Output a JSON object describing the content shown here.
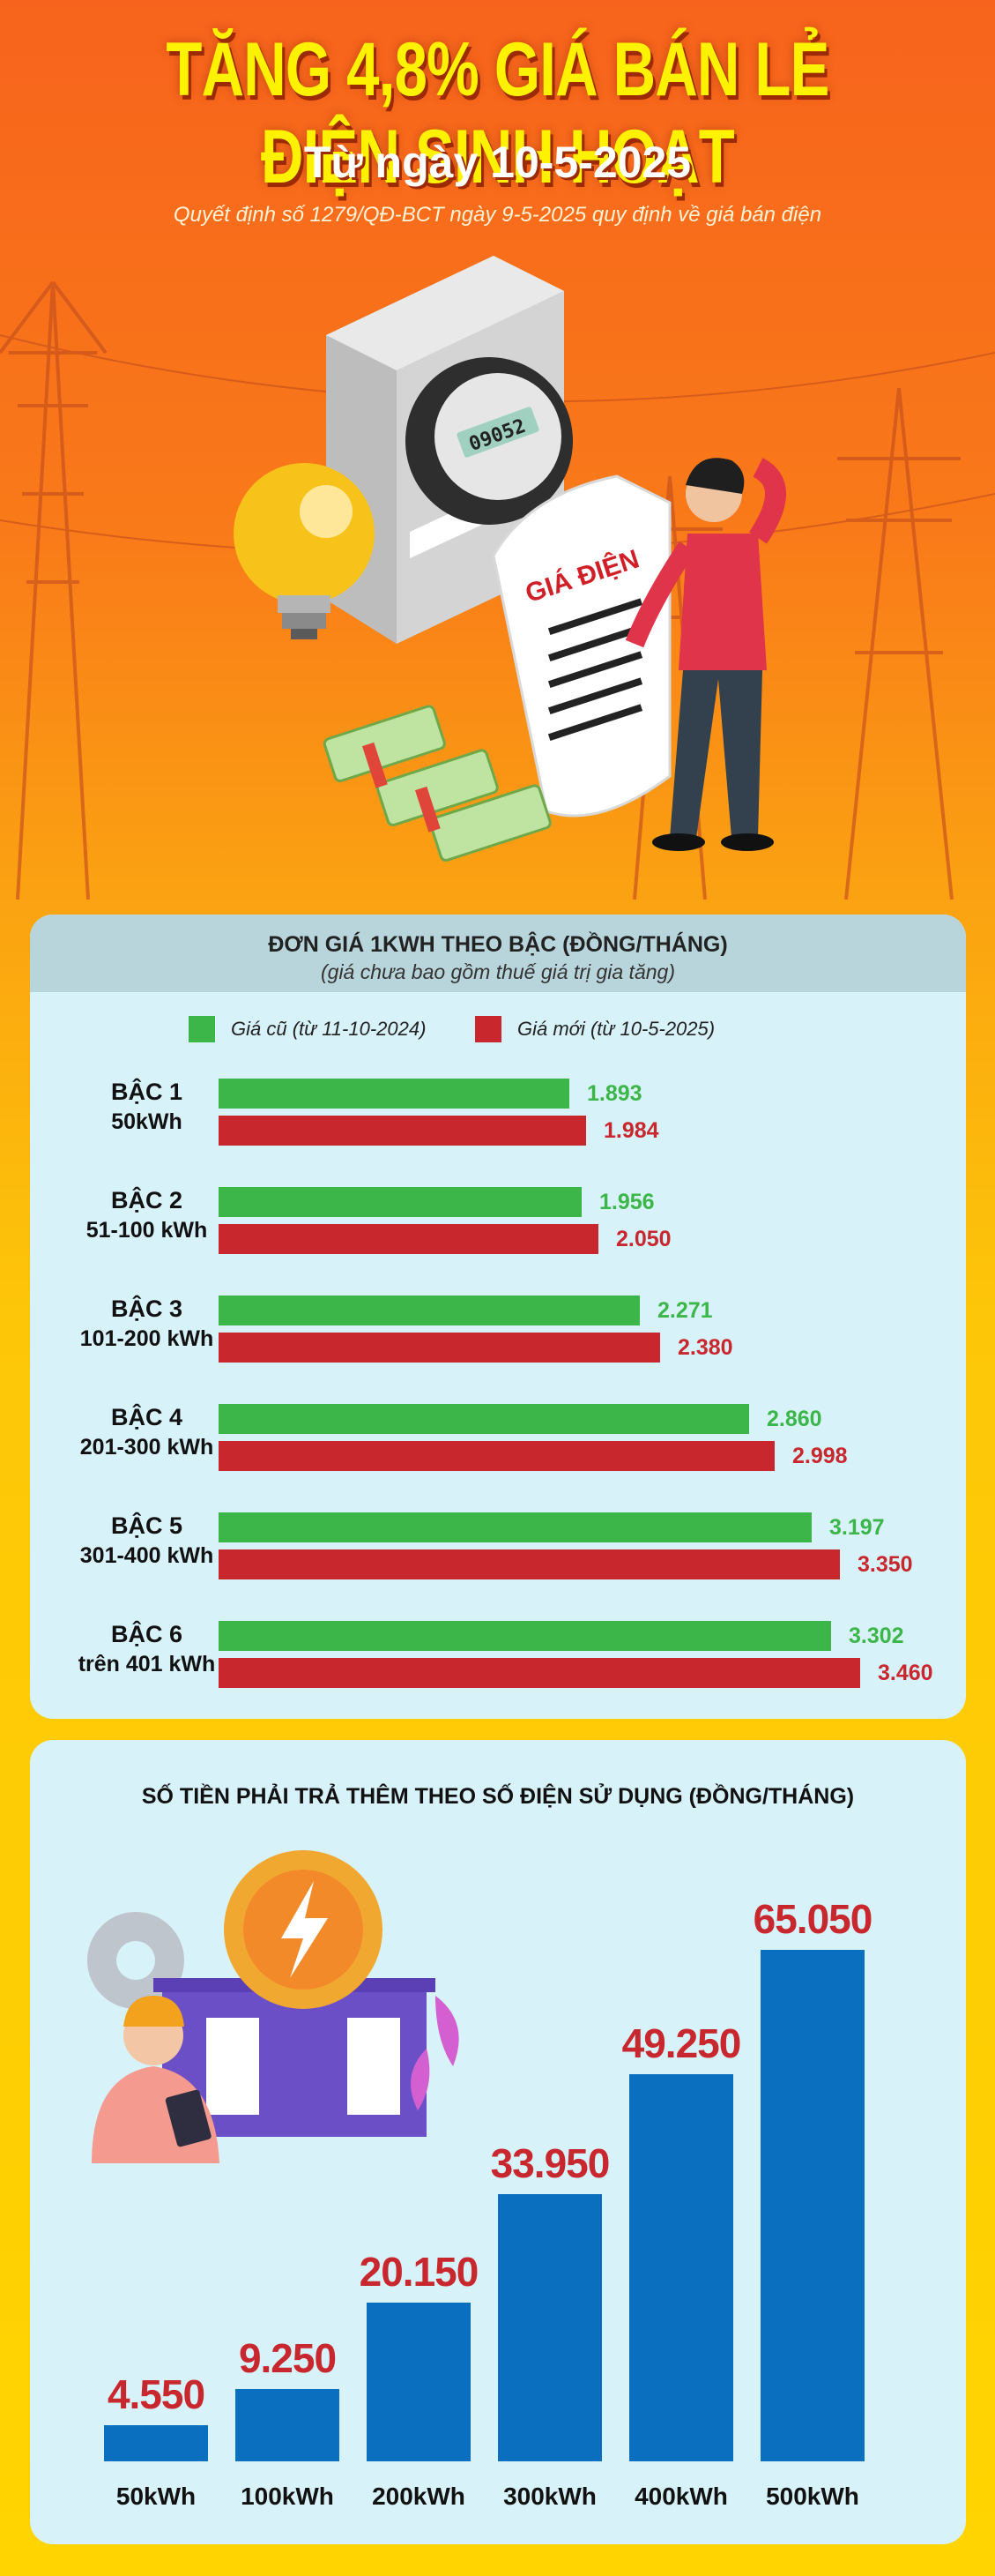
{
  "header": {
    "title": "TĂNG 4,8% GIÁ BÁN LẺ ĐIỆN SINH HOẠT",
    "subtitle": "Từ ngày 10-5-2025",
    "decision": "Quyết định số 1279/QĐ-BCT ngày 9-5-2025 quy định về giá bán điện"
  },
  "illustration": {
    "meter_reading": "09052",
    "bill_label": "GIÁ ĐIỆN"
  },
  "colors": {
    "old_price": "#3cb649",
    "new_price": "#c8272e",
    "extra_bar": "#0a6fbf"
  },
  "chart_data": [
    {
      "type": "bar",
      "orientation": "horizontal",
      "title": "ĐƠN GIÁ 1KWH THEO BẬC (ĐỒNG/THÁNG)",
      "subtitle": "(giá chưa bao gồm thuế giá trị gia tăng)",
      "legend_position": "top",
      "categories": [
        {
          "tier": "BẬC 1",
          "range": "50kWh"
        },
        {
          "tier": "BẬC 2",
          "range": "51-100 kWh"
        },
        {
          "tier": "BẬC 3",
          "range": "101-200 kWh"
        },
        {
          "tier": "BẬC 4",
          "range": "201-300 kWh"
        },
        {
          "tier": "BẬC 5",
          "range": "301-400 kWh"
        },
        {
          "tier": "BẬC 6",
          "range": "trên 401 kWh"
        }
      ],
      "series": [
        {
          "name": "Giá cũ (từ 11-10-2024)",
          "values": [
            1893,
            1956,
            2271,
            2860,
            3197,
            3302
          ],
          "labels": [
            "1.893",
            "1.956",
            "2.271",
            "2.860",
            "3.197",
            "3.302"
          ]
        },
        {
          "name": "Giá mới (từ 10-5-2025)",
          "values": [
            1984,
            2050,
            2380,
            2998,
            3350,
            3460
          ],
          "labels": [
            "1.984",
            "2.050",
            "2.380",
            "2.998",
            "3.350",
            "3.460"
          ]
        }
      ],
      "xlim": [
        0,
        3460
      ]
    },
    {
      "type": "bar",
      "title": "SỐ TIỀN PHẢI TRẢ THÊM THEO SỐ ĐIỆN SỬ DỤNG (ĐỒNG/THÁNG)",
      "categories": [
        "50kWh",
        "100kWh",
        "200kWh",
        "300kWh",
        "400kWh",
        "500kWh"
      ],
      "values": [
        4550,
        9250,
        20150,
        33950,
        49250,
        65050
      ],
      "labels": [
        "4.550",
        "9.250",
        "20.150",
        "33.950",
        "49.250",
        "65.050"
      ],
      "ylim": [
        0,
        65050
      ]
    }
  ]
}
